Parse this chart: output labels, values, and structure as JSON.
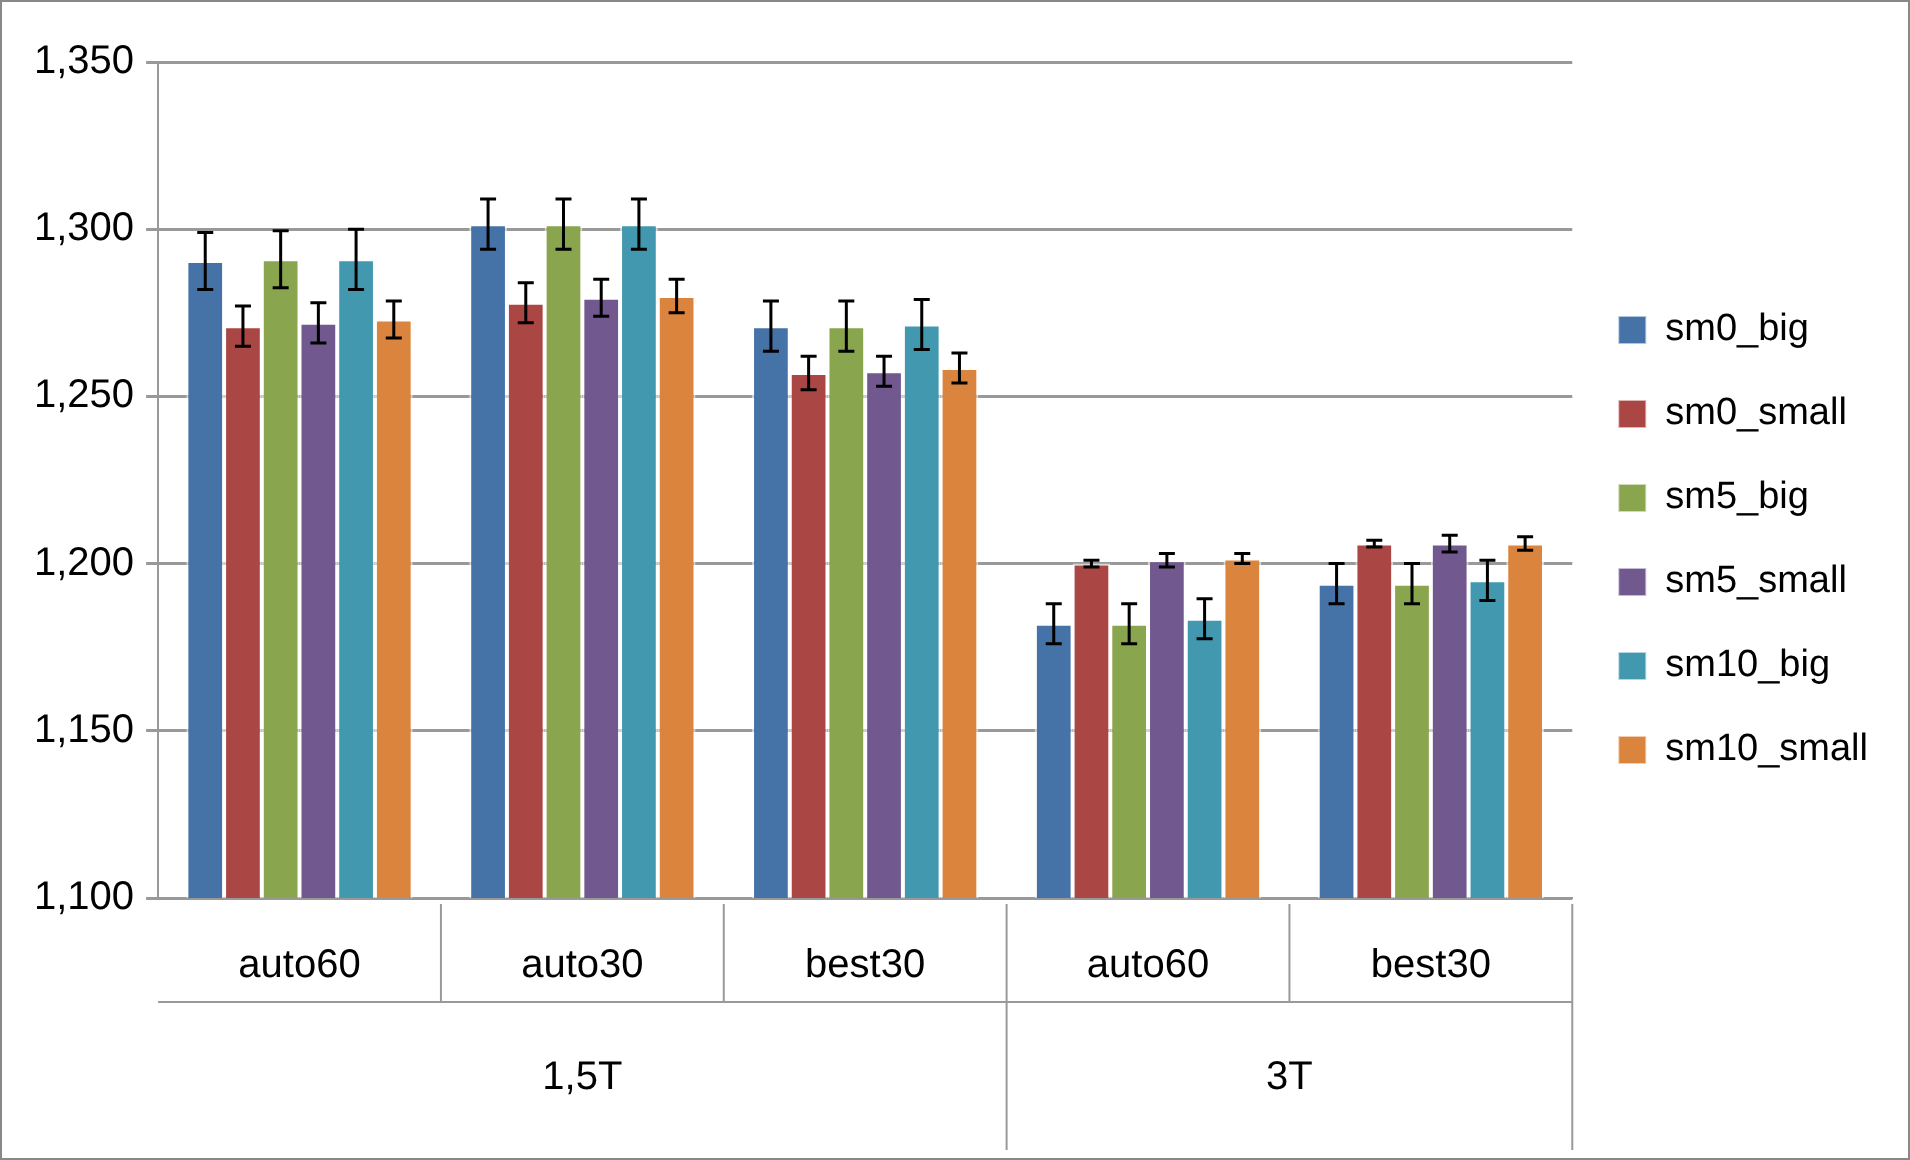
{
  "chart_data": {
    "type": "bar",
    "categories": [
      "auto60",
      "auto30",
      "best30",
      "auto60",
      "best30"
    ],
    "annotations": [
      "1,5T",
      "3T"
    ],
    "ylim": [
      1100,
      1350
    ],
    "yticks": [
      {
        "value": 1100,
        "label": "1,100"
      },
      {
        "value": 1150,
        "label": "1,150"
      },
      {
        "value": 1200,
        "label": "1,200"
      },
      {
        "value": 1250,
        "label": "1,250"
      },
      {
        "value": 1300,
        "label": "1,300"
      },
      {
        "value": 1350,
        "label": "1,350"
      }
    ],
    "grid": "y",
    "legend": "right",
    "series": [
      {
        "name": "sm0_big",
        "color": "#4572a7",
        "values": [
          1290.5,
          1301.5,
          1271,
          1182,
          1194
        ],
        "errors": [
          8.5,
          7.5,
          7.5,
          6,
          6
        ]
      },
      {
        "name": "sm0_small",
        "color": "#aa4643",
        "values": [
          1271,
          1278,
          1257,
          1200,
          1206
        ],
        "errors": [
          6,
          6,
          5,
          1,
          1
        ]
      },
      {
        "name": "sm5_big",
        "color": "#89a54e",
        "values": [
          1291,
          1301.5,
          1271,
          1182,
          1194
        ],
        "errors": [
          8.5,
          7.5,
          7.5,
          6,
          6
        ]
      },
      {
        "name": "sm5_small",
        "color": "#71588f",
        "values": [
          1272,
          1279.5,
          1257.5,
          1201,
          1206
        ],
        "errors": [
          6,
          5.5,
          4.5,
          2,
          2.5
        ]
      },
      {
        "name": "sm10_big",
        "color": "#4198af",
        "values": [
          1291,
          1301.5,
          1271.5,
          1183.5,
          1195
        ],
        "errors": [
          9,
          7.5,
          7.5,
          6,
          6
        ]
      },
      {
        "name": "sm10_small",
        "color": "#db843d",
        "values": [
          1273,
          1280,
          1258.5,
          1201.5,
          1206
        ],
        "errors": [
          5.5,
          5,
          4.5,
          1.5,
          2
        ]
      }
    ]
  }
}
